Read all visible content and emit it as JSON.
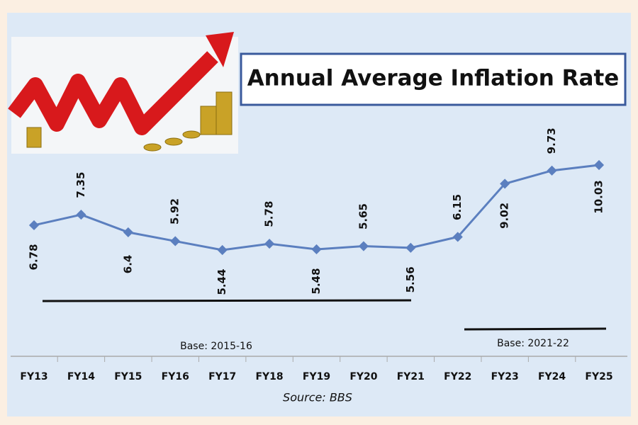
{
  "chart_data": {
    "type": "line",
    "title": "Annual Average Inflation Rate",
    "categories": [
      "FY13",
      "FY14",
      "FY15",
      "FY16",
      "FY17",
      "FY18",
      "FY19",
      "FY20",
      "FY21",
      "FY22",
      "FY23",
      "FY24",
      "FY25"
    ],
    "series": [
      {
        "name": "Inflation",
        "color": "#5b7fbf",
        "values": [
          6.78,
          7.35,
          6.4,
          5.92,
          5.44,
          5.78,
          5.48,
          5.65,
          5.56,
          6.15,
          9.02,
          9.73,
          10.03
        ]
      }
    ],
    "annotations": [
      "Base: 2015-16",
      "Base: 2021-22"
    ],
    "source": "Source: BBS"
  }
}
